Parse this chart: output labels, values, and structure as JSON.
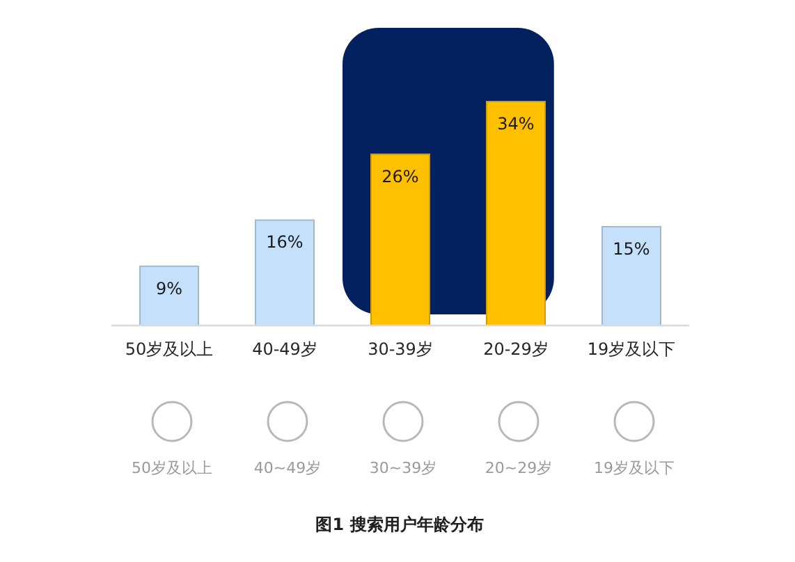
{
  "chart_data": {
    "type": "bar",
    "title": "图1 搜索用户年龄分布",
    "categories": [
      "50岁及以上",
      "40-49岁",
      "30-39岁",
      "20-29岁",
      "19岁及以下"
    ],
    "values": [
      9,
      16,
      26,
      34,
      15
    ],
    "value_labels": [
      "9%",
      "16%",
      "26%",
      "34%",
      "15%"
    ],
    "colors": [
      "#c5e0fa",
      "#c5e0fa",
      "#ffc000",
      "#ffc000",
      "#c5e0fa"
    ],
    "bands": [
      {
        "axis": "x",
        "from": "30-39岁",
        "to": "20-29岁",
        "color": "#03215e"
      }
    ],
    "annotations": [
      "50岁及以上",
      "40~49岁",
      "30~39岁",
      "20~29岁",
      "19岁及以下"
    ]
  }
}
